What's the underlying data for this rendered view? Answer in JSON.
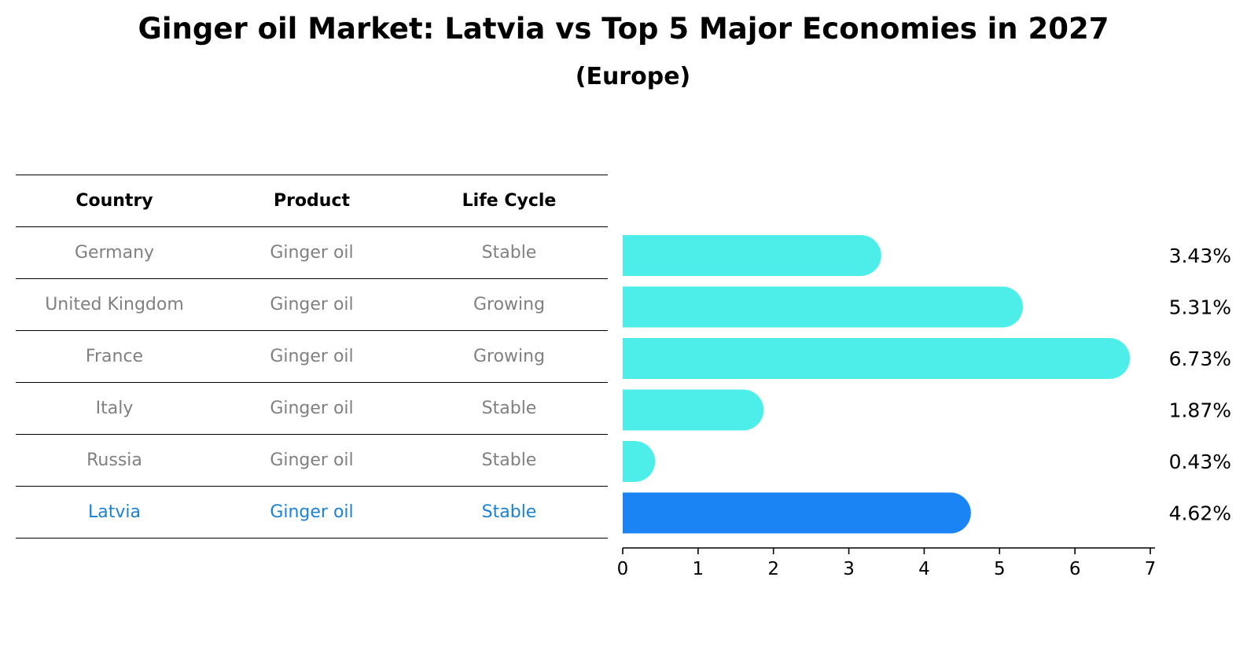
{
  "title": "Ginger oil Market: Latvia vs Top 5 Major Economies in 2027",
  "subtitle": "(Europe)",
  "table": {
    "headers": [
      "Country",
      "Product",
      "Life Cycle"
    ],
    "rows": [
      {
        "country": "Germany",
        "product": "Ginger oil",
        "life_cycle": "Stable"
      },
      {
        "country": "United Kingdom",
        "product": "Ginger oil",
        "life_cycle": "Growing"
      },
      {
        "country": "France",
        "product": "Ginger oil",
        "life_cycle": "Growing"
      },
      {
        "country": "Italy",
        "product": "Ginger oil",
        "life_cycle": "Stable"
      },
      {
        "country": "Russia",
        "product": "Ginger oil",
        "life_cycle": "Stable"
      },
      {
        "country": "Latvia",
        "product": "Ginger oil",
        "life_cycle": "Stable"
      }
    ]
  },
  "chart_data": {
    "type": "bar",
    "orientation": "horizontal",
    "categories": [
      "Germany",
      "United Kingdom",
      "France",
      "Italy",
      "Russia",
      "Latvia"
    ],
    "values": [
      3.43,
      5.31,
      6.73,
      1.87,
      0.43,
      4.62
    ],
    "value_labels": [
      "3.43%",
      "5.31%",
      "6.73%",
      "1.87%",
      "0.43%",
      "4.62%"
    ],
    "highlight_category": "Latvia",
    "xlim": [
      0,
      7
    ],
    "xticks": [
      0,
      1,
      2,
      3,
      4,
      5,
      6,
      7
    ],
    "title": "",
    "xlabel": "",
    "ylabel": "",
    "grid": false,
    "colors": {
      "bar": "#4deeea",
      "highlight_bar": "#1a84f4",
      "highlight_text": "#1a82d6",
      "muted_text": "#808080",
      "axis": "#000000"
    }
  }
}
